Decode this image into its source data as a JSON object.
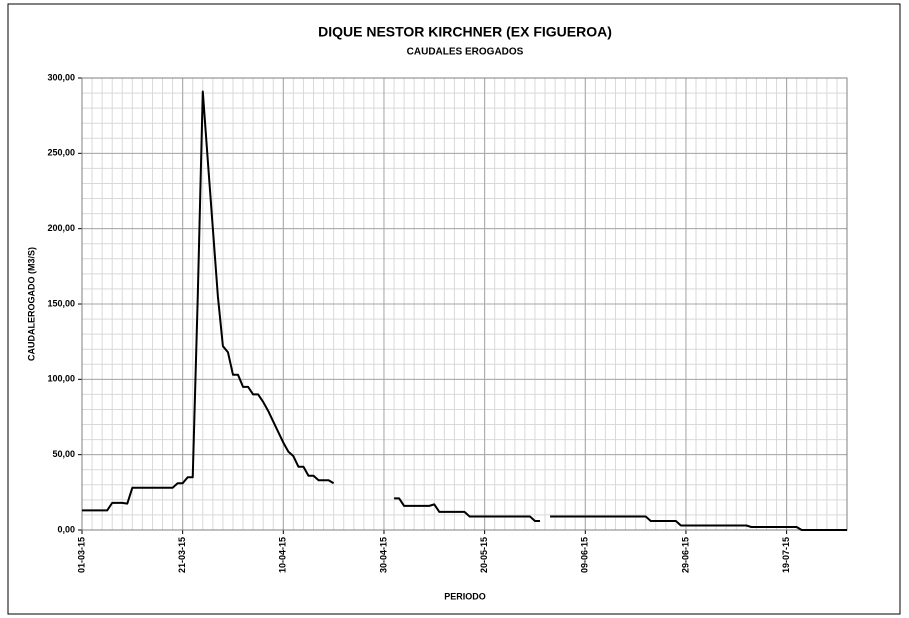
{
  "chart_data": {
    "type": "line",
    "title": "DIQUE NESTOR KIRCHNER (EX FIGUEROA)",
    "subtitle": "CAUDALES EROGADOS",
    "y_label": "CAUDALEROGADO (M3/S)",
    "x_label": "PERIODO",
    "color": "#000000",
    "grid": true,
    "minor_grid_step": {
      "y": 10,
      "x_days": 2
    },
    "ylim": [
      0,
      300
    ],
    "yticks": [
      {
        "value": 0,
        "label": "0,00"
      },
      {
        "value": 50,
        "label": "50,00"
      },
      {
        "value": 100,
        "label": "100,00"
      },
      {
        "value": 150,
        "label": "150,00"
      },
      {
        "value": 200,
        "label": "200,00"
      },
      {
        "value": 250,
        "label": "250,00"
      },
      {
        "value": 300,
        "label": "300,00"
      }
    ],
    "xlim": [
      "2015-03-01",
      "2015-07-31"
    ],
    "xticks": [
      {
        "value": "2015-03-01",
        "label": "01-03-15"
      },
      {
        "value": "2015-03-21",
        "label": "21-03-15"
      },
      {
        "value": "2015-04-10",
        "label": "10-04-15"
      },
      {
        "value": "2015-04-30",
        "label": "30-04-15"
      },
      {
        "value": "2015-05-20",
        "label": "20-05-15"
      },
      {
        "value": "2015-06-09",
        "label": "09-06-15"
      },
      {
        "value": "2015-06-29",
        "label": "29-06-15"
      },
      {
        "value": "2015-07-19",
        "label": "19-07-15"
      }
    ],
    "x": [
      "2015-03-01",
      "2015-03-02",
      "2015-03-03",
      "2015-03-04",
      "2015-03-05",
      "2015-03-06",
      "2015-03-07",
      "2015-03-08",
      "2015-03-09",
      "2015-03-10",
      "2015-03-11",
      "2015-03-12",
      "2015-03-13",
      "2015-03-14",
      "2015-03-15",
      "2015-03-16",
      "2015-03-17",
      "2015-03-18",
      "2015-03-19",
      "2015-03-20",
      "2015-03-21",
      "2015-03-22",
      "2015-03-23",
      "2015-03-24",
      "2015-03-25",
      "2015-03-26",
      "2015-03-27",
      "2015-03-28",
      "2015-03-29",
      "2015-03-30",
      "2015-03-31",
      "2015-04-01",
      "2015-04-02",
      "2015-04-03",
      "2015-04-04",
      "2015-04-05",
      "2015-04-06",
      "2015-04-07",
      "2015-04-08",
      "2015-04-09",
      "2015-04-10",
      "2015-04-11",
      "2015-04-12",
      "2015-04-13",
      "2015-04-14",
      "2015-04-15",
      "2015-04-16",
      "2015-04-17",
      "2015-04-18",
      "2015-04-19",
      "2015-04-20",
      "2015-04-21",
      "2015-04-22",
      "2015-04-23",
      "2015-04-24",
      "2015-04-25",
      "2015-04-26",
      "2015-04-27",
      "2015-04-28",
      "2015-04-29",
      "2015-04-30",
      "2015-05-01",
      "2015-05-02",
      "2015-05-03",
      "2015-05-04",
      "2015-05-05",
      "2015-05-06",
      "2015-05-07",
      "2015-05-08",
      "2015-05-09",
      "2015-05-10",
      "2015-05-11",
      "2015-05-12",
      "2015-05-13",
      "2015-05-14",
      "2015-05-15",
      "2015-05-16",
      "2015-05-17",
      "2015-05-18",
      "2015-05-19",
      "2015-05-20",
      "2015-05-21",
      "2015-05-22",
      "2015-05-23",
      "2015-05-24",
      "2015-05-25",
      "2015-05-26",
      "2015-05-27",
      "2015-05-28",
      "2015-05-29",
      "2015-05-30",
      "2015-05-31",
      "2015-06-01",
      "2015-06-02",
      "2015-06-03",
      "2015-06-04",
      "2015-06-05",
      "2015-06-06",
      "2015-06-07",
      "2015-06-08",
      "2015-06-09",
      "2015-06-10",
      "2015-06-11",
      "2015-06-12",
      "2015-06-13",
      "2015-06-14",
      "2015-06-15",
      "2015-06-16",
      "2015-06-17",
      "2015-06-18",
      "2015-06-19",
      "2015-06-20",
      "2015-06-21",
      "2015-06-22",
      "2015-06-23",
      "2015-06-24",
      "2015-06-25",
      "2015-06-26",
      "2015-06-27",
      "2015-06-28",
      "2015-06-29",
      "2015-06-30",
      "2015-07-01",
      "2015-07-02",
      "2015-07-03",
      "2015-07-04",
      "2015-07-05",
      "2015-07-06",
      "2015-07-07",
      "2015-07-08",
      "2015-07-09",
      "2015-07-10",
      "2015-07-11",
      "2015-07-12",
      "2015-07-13",
      "2015-07-14",
      "2015-07-15",
      "2015-07-16",
      "2015-07-17",
      "2015-07-18",
      "2015-07-19",
      "2015-07-20",
      "2015-07-21",
      "2015-07-22",
      "2015-07-23",
      "2015-07-24",
      "2015-07-25",
      "2015-07-26",
      "2015-07-27",
      "2015-07-28",
      "2015-07-29",
      "2015-07-30",
      "2015-07-31"
    ],
    "values": [
      13,
      13,
      13,
      13,
      13,
      13,
      18,
      18,
      18,
      17.5,
      28,
      28,
      28,
      28,
      28,
      28,
      28,
      28,
      28,
      31,
      31,
      35,
      35,
      155,
      291,
      245,
      200,
      155,
      122,
      118,
      103,
      103,
      95,
      95,
      90,
      90,
      85,
      79,
      72,
      65,
      58,
      52,
      49,
      42,
      42,
      36,
      36,
      33,
      33,
      33,
      31,
      null,
      null,
      null,
      null,
      null,
      null,
      null,
      null,
      null,
      null,
      null,
      21,
      21,
      16,
      16,
      16,
      16,
      16,
      16,
      17,
      12,
      12,
      12,
      12,
      12,
      12,
      9,
      9,
      9,
      9,
      9,
      9,
      9,
      9,
      9,
      9,
      9,
      9,
      9,
      6,
      6,
      null,
      9,
      9,
      9,
      9,
      9,
      9,
      9,
      9,
      9,
      9,
      9,
      9,
      9,
      9,
      9,
      9,
      9,
      9,
      9,
      9,
      6,
      6,
      6,
      6,
      6,
      6,
      3,
      3,
      3,
      3,
      3,
      3,
      3,
      3,
      3,
      3,
      3,
      3,
      3,
      3,
      2,
      2,
      2,
      2,
      2,
      2,
      2,
      2,
      2,
      2,
      0,
      0,
      0,
      0,
      0,
      0,
      0,
      0,
      0,
      0
    ]
  }
}
